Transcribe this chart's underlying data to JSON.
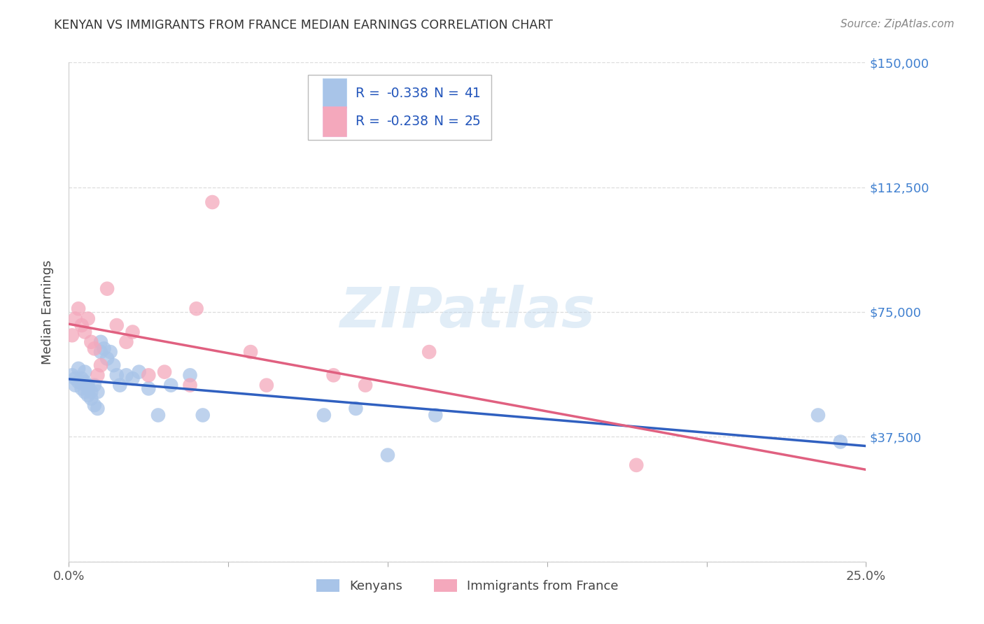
{
  "title": "KENYAN VS IMMIGRANTS FROM FRANCE MEDIAN EARNINGS CORRELATION CHART",
  "source": "Source: ZipAtlas.com",
  "ylabel": "Median Earnings",
  "xlim": [
    0.0,
    0.25
  ],
  "ylim": [
    0,
    150000
  ],
  "yticks": [
    0,
    37500,
    75000,
    112500,
    150000
  ],
  "ytick_labels": [
    "",
    "$37,500",
    "$75,000",
    "$112,500",
    "$150,000"
  ],
  "xticks": [
    0.0,
    0.05,
    0.1,
    0.15,
    0.2,
    0.25
  ],
  "xtick_labels": [
    "0.0%",
    "",
    "",
    "",
    "",
    "25.0%"
  ],
  "watermark": "ZIPatlas",
  "legend_R1": "-0.338",
  "legend_N1": "41",
  "legend_R2": "-0.238",
  "legend_N2": "25",
  "legend_label1": "Kenyans",
  "legend_label2": "Immigrants from France",
  "blue_scatter_color": "#a8c4e8",
  "pink_scatter_color": "#f4a8bc",
  "blue_line_color": "#3060c0",
  "pink_line_color": "#e06080",
  "grid_color": "#dddddd",
  "background_color": "#ffffff",
  "title_color": "#333333",
  "right_label_color": "#4080d0",
  "legend_text_color": "#2255bb",
  "kenyans_x": [
    0.001,
    0.002,
    0.002,
    0.003,
    0.003,
    0.004,
    0.004,
    0.005,
    0.005,
    0.005,
    0.006,
    0.006,
    0.006,
    0.007,
    0.007,
    0.008,
    0.008,
    0.009,
    0.009,
    0.01,
    0.01,
    0.011,
    0.012,
    0.013,
    0.014,
    0.015,
    0.016,
    0.018,
    0.02,
    0.022,
    0.025,
    0.028,
    0.032,
    0.038,
    0.042,
    0.08,
    0.09,
    0.1,
    0.115,
    0.235,
    0.242
  ],
  "kenyans_y": [
    56000,
    55000,
    53000,
    58000,
    54000,
    55000,
    52000,
    57000,
    51000,
    54000,
    53000,
    50000,
    52000,
    51000,
    49000,
    53000,
    47000,
    51000,
    46000,
    63000,
    66000,
    64000,
    61000,
    63000,
    59000,
    56000,
    53000,
    56000,
    55000,
    57000,
    52000,
    44000,
    53000,
    56000,
    44000,
    44000,
    46000,
    32000,
    44000,
    44000,
    36000
  ],
  "france_x": [
    0.001,
    0.002,
    0.003,
    0.004,
    0.005,
    0.006,
    0.007,
    0.008,
    0.009,
    0.01,
    0.012,
    0.015,
    0.018,
    0.02,
    0.025,
    0.03,
    0.038,
    0.04,
    0.045,
    0.057,
    0.062,
    0.083,
    0.093,
    0.113,
    0.178
  ],
  "france_y": [
    68000,
    73000,
    76000,
    71000,
    69000,
    73000,
    66000,
    64000,
    56000,
    59000,
    82000,
    71000,
    66000,
    69000,
    56000,
    57000,
    53000,
    76000,
    108000,
    63000,
    53000,
    56000,
    53000,
    63000,
    29000
  ]
}
